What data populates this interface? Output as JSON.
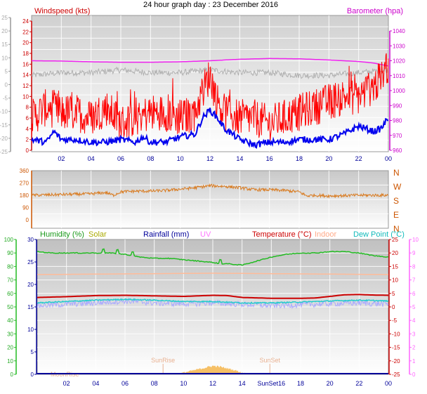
{
  "page": {
    "title": "24 hour graph day : 23 December 2016"
  },
  "colors": {
    "windspeed": "#ff0000",
    "windavg": "#0000ee",
    "barometer": "#ee22ee",
    "gust_baseline": "#b0b0b0",
    "direction": "#d97b20",
    "humidity": "#22bb22",
    "solar": "#cccc00",
    "rainfall": "#000099",
    "uv": "#ff66ff",
    "temperature": "#cc0000",
    "indoor": "#ffbb99",
    "dewpoint": "#22cccc",
    "windchill": "#aaaaff",
    "solar_fill": "#f4b040"
  },
  "chart_data": [
    {
      "type": "line",
      "x_tick_labels": [
        "02",
        "04",
        "06",
        "08",
        "10",
        "12",
        "14",
        "16",
        "18",
        "20",
        "22",
        "00"
      ],
      "x_range_hours": [
        0,
        24
      ],
      "left_axis": {
        "label": "Windspeed (kts)",
        "range": [
          -25,
          25
        ],
        "ticks": [
          "25",
          "20",
          "15",
          "10",
          "5",
          "0",
          "-5",
          "-10",
          "-15",
          "-20",
          "-25"
        ]
      },
      "red_axis": {
        "range": [
          0,
          24
        ],
        "ticks": [
          "24",
          "22",
          "20",
          "18",
          "16",
          "14",
          "12",
          "10",
          "8",
          "6",
          "4",
          "2",
          "0"
        ]
      },
      "right_axis": {
        "label": "Barometer (hpa)",
        "range": [
          960,
          1045
        ],
        "ticks": [
          "1040",
          "1030",
          "1020",
          "1010",
          "1000",
          "990",
          "980",
          "970",
          "960"
        ]
      },
      "series": [
        {
          "name": "Windspeed (kts)",
          "axis": "red",
          "x": [
            0,
            1,
            2,
            3,
            4,
            5,
            6,
            7,
            8,
            9,
            10,
            11,
            11.5,
            12,
            12.5,
            13,
            14,
            15,
            16,
            17,
            18,
            19,
            20,
            21,
            22,
            23,
            23.5,
            24
          ],
          "y": [
            6,
            8,
            7,
            7,
            6,
            8,
            5,
            6,
            7,
            7,
            6,
            7,
            11,
            14,
            9,
            7,
            6,
            6,
            5,
            6,
            7,
            8,
            9,
            10,
            10,
            12,
            13,
            16
          ]
        },
        {
          "name": "Average wind",
          "axis": "red",
          "x": [
            0,
            1,
            1.5,
            2,
            3,
            4,
            5,
            6,
            7,
            7.5,
            8,
            9,
            10,
            11,
            11.5,
            12,
            12.5,
            13,
            14,
            14.5,
            15,
            16,
            17,
            18,
            19,
            20,
            21,
            22,
            23,
            23.5,
            24
          ],
          "y": [
            2,
            1.5,
            3.5,
            2,
            2,
            1.5,
            1.5,
            2,
            1.5,
            2.5,
            1.5,
            1.5,
            2.5,
            3,
            6,
            7.5,
            6,
            4,
            2,
            1.5,
            1,
            1.5,
            1.5,
            2,
            2,
            2,
            3,
            4.5,
            3.5,
            4,
            6
          ]
        },
        {
          "name": "Barometer (hpa)",
          "axis": "right",
          "x": [
            0,
            2,
            4,
            6,
            8,
            10,
            12,
            14,
            16,
            18,
            20,
            22,
            23,
            24
          ],
          "y": [
            1020,
            1019.8,
            1019.3,
            1019,
            1019,
            1019.3,
            1020,
            1021,
            1021.5,
            1021.3,
            1020.5,
            1019.5,
            1018.5,
            1016.5
          ]
        },
        {
          "name": "Gust baseline",
          "axis": "left",
          "x": [
            0,
            2,
            4,
            6,
            8,
            10,
            12,
            14,
            16,
            18,
            20,
            22,
            24
          ],
          "y": [
            3,
            4,
            4,
            5,
            4,
            4,
            5,
            4,
            4,
            3,
            3,
            4,
            5
          ]
        }
      ]
    },
    {
      "type": "line",
      "x_range_hours": [
        0,
        24
      ],
      "left_axis": {
        "range": [
          0,
          360
        ],
        "ticks": [
          "360",
          "270",
          "180",
          "90",
          "0"
        ]
      },
      "right_axis": {
        "ticks": [
          "N",
          "W",
          "S",
          "E",
          "N"
        ]
      },
      "series": [
        {
          "name": "Wind direction",
          "x": [
            0,
            2,
            4,
            5,
            5.5,
            6,
            7,
            8,
            9,
            10,
            11,
            12,
            13,
            14,
            15,
            16,
            17,
            18,
            18.5,
            19,
            20,
            22,
            24
          ],
          "y": [
            180,
            185,
            190,
            200,
            180,
            205,
            210,
            210,
            215,
            225,
            235,
            250,
            245,
            235,
            220,
            220,
            215,
            205,
            175,
            180,
            175,
            180,
            180
          ]
        }
      ]
    },
    {
      "type": "line",
      "x_tick_labels": [
        "02",
        "04",
        "06",
        "08",
        "10",
        "12",
        "14",
        "SunSet16",
        "18",
        "20",
        "22",
        "00"
      ],
      "x_range_hours": [
        0,
        24
      ],
      "legend": [
        "Humidity (%)",
        "Solar",
        "Rainfall (mm)",
        "UV",
        "Temperature (°C)",
        "Indoor",
        "Dew Point (°C)"
      ],
      "left_axis_humidity": {
        "range": [
          0,
          100
        ],
        "ticks": [
          "100",
          "90",
          "80",
          "70",
          "60",
          "50",
          "40",
          "30",
          "20",
          "10",
          "0"
        ]
      },
      "left_axis_rain": {
        "range": [
          0,
          30
        ],
        "ticks": [
          "30",
          "25",
          "20",
          "15",
          "10",
          "5",
          "0"
        ]
      },
      "right_axis_temperature": {
        "range": [
          -25,
          25
        ],
        "ticks": [
          "25",
          "20",
          "15",
          "10",
          "5",
          "0",
          "-5",
          "-10",
          "-15",
          "-20",
          "-25"
        ]
      },
      "right_axis_uv": {
        "range": [
          0,
          10
        ],
        "ticks": [
          "10",
          "9",
          "8",
          "7",
          "6",
          "5",
          "4",
          "3",
          "2",
          "1",
          "0"
        ]
      },
      "annotations": [
        "MoonRise",
        "SunRise",
        "SunSet"
      ],
      "series": [
        {
          "name": "Humidity (%)",
          "axis": "humidity",
          "x": [
            0,
            1,
            2,
            3,
            4,
            5,
            6,
            7,
            8,
            9,
            10,
            11,
            12,
            12.5,
            13,
            14,
            15,
            16,
            17,
            18,
            19,
            20,
            21,
            22,
            23,
            24
          ],
          "y": [
            91,
            90,
            90,
            90,
            90,
            90,
            89,
            87,
            86,
            86,
            85,
            84,
            83,
            82,
            82,
            81,
            84,
            87,
            89,
            90,
            90,
            91,
            91,
            90,
            88,
            87
          ]
        },
        {
          "name": "Indoor",
          "axis": "temperature",
          "x": [
            0,
            12,
            24
          ],
          "y": [
            12,
            12.5,
            12
          ]
        },
        {
          "name": "Temperature (°C)",
          "axis": "temperature",
          "x": [
            0,
            2,
            4,
            6,
            8,
            10,
            12,
            13,
            14,
            16,
            18,
            19,
            20,
            21,
            22,
            23,
            24
          ],
          "y": [
            3.5,
            3.8,
            4.2,
            4.3,
            4.1,
            3.9,
            4.3,
            4.2,
            3.5,
            3.2,
            3.2,
            3.3,
            3.9,
            4.5,
            4.6,
            4.4,
            4.3
          ]
        },
        {
          "name": "Dew Point (°C)",
          "axis": "temperature",
          "x": [
            0,
            2,
            4,
            6,
            8,
            10,
            12,
            14,
            16,
            18,
            20,
            22,
            24
          ],
          "y": [
            1.5,
            2,
            2.5,
            2.8,
            2.5,
            2,
            2,
            1.5,
            1.5,
            1.8,
            2.2,
            2.5,
            2.2
          ]
        },
        {
          "name": "Wind chill",
          "axis": "temperature",
          "x": [
            0,
            2,
            4,
            6,
            8,
            10,
            12,
            14,
            16,
            18,
            20,
            22,
            24
          ],
          "y": [
            0.5,
            1,
            1.5,
            2.2,
            1.5,
            1.2,
            1.5,
            1,
            0.5,
            0.8,
            1.2,
            1.5,
            1
          ]
        },
        {
          "name": "Solar",
          "axis": "solar_fill",
          "x": [
            9.5,
            10,
            11,
            11.5,
            12,
            12.5,
            13,
            13.5,
            14,
            14.5
          ],
          "y": [
            0,
            1,
            3,
            4,
            5,
            4.5,
            3.5,
            2.5,
            1,
            0
          ]
        }
      ]
    }
  ]
}
